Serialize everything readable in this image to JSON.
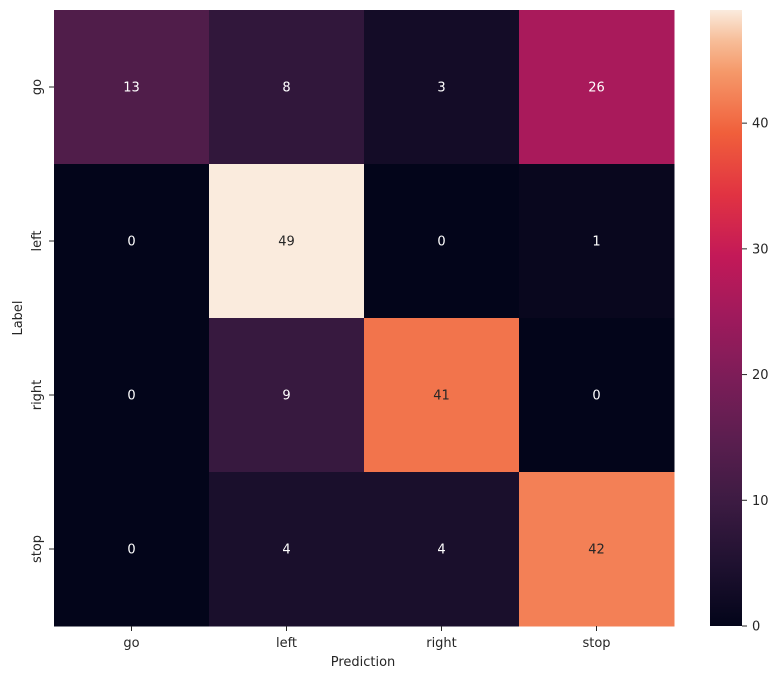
{
  "chart_data": {
    "type": "heatmap",
    "title": "",
    "xlabel": "Prediction",
    "ylabel": "Label",
    "x_categories": [
      "go",
      "left",
      "right",
      "stop"
    ],
    "y_categories": [
      "go",
      "left",
      "right",
      "stop"
    ],
    "values": [
      [
        13,
        8,
        3,
        26
      ],
      [
        0,
        49,
        0,
        1
      ],
      [
        0,
        9,
        41,
        0
      ],
      [
        0,
        4,
        4,
        42
      ]
    ],
    "colorbar": {
      "min": 0,
      "max": 49,
      "ticks": [
        0,
        10,
        20,
        30,
        40
      ],
      "colormap": "rocket"
    },
    "annotations": true,
    "grid": false
  }
}
